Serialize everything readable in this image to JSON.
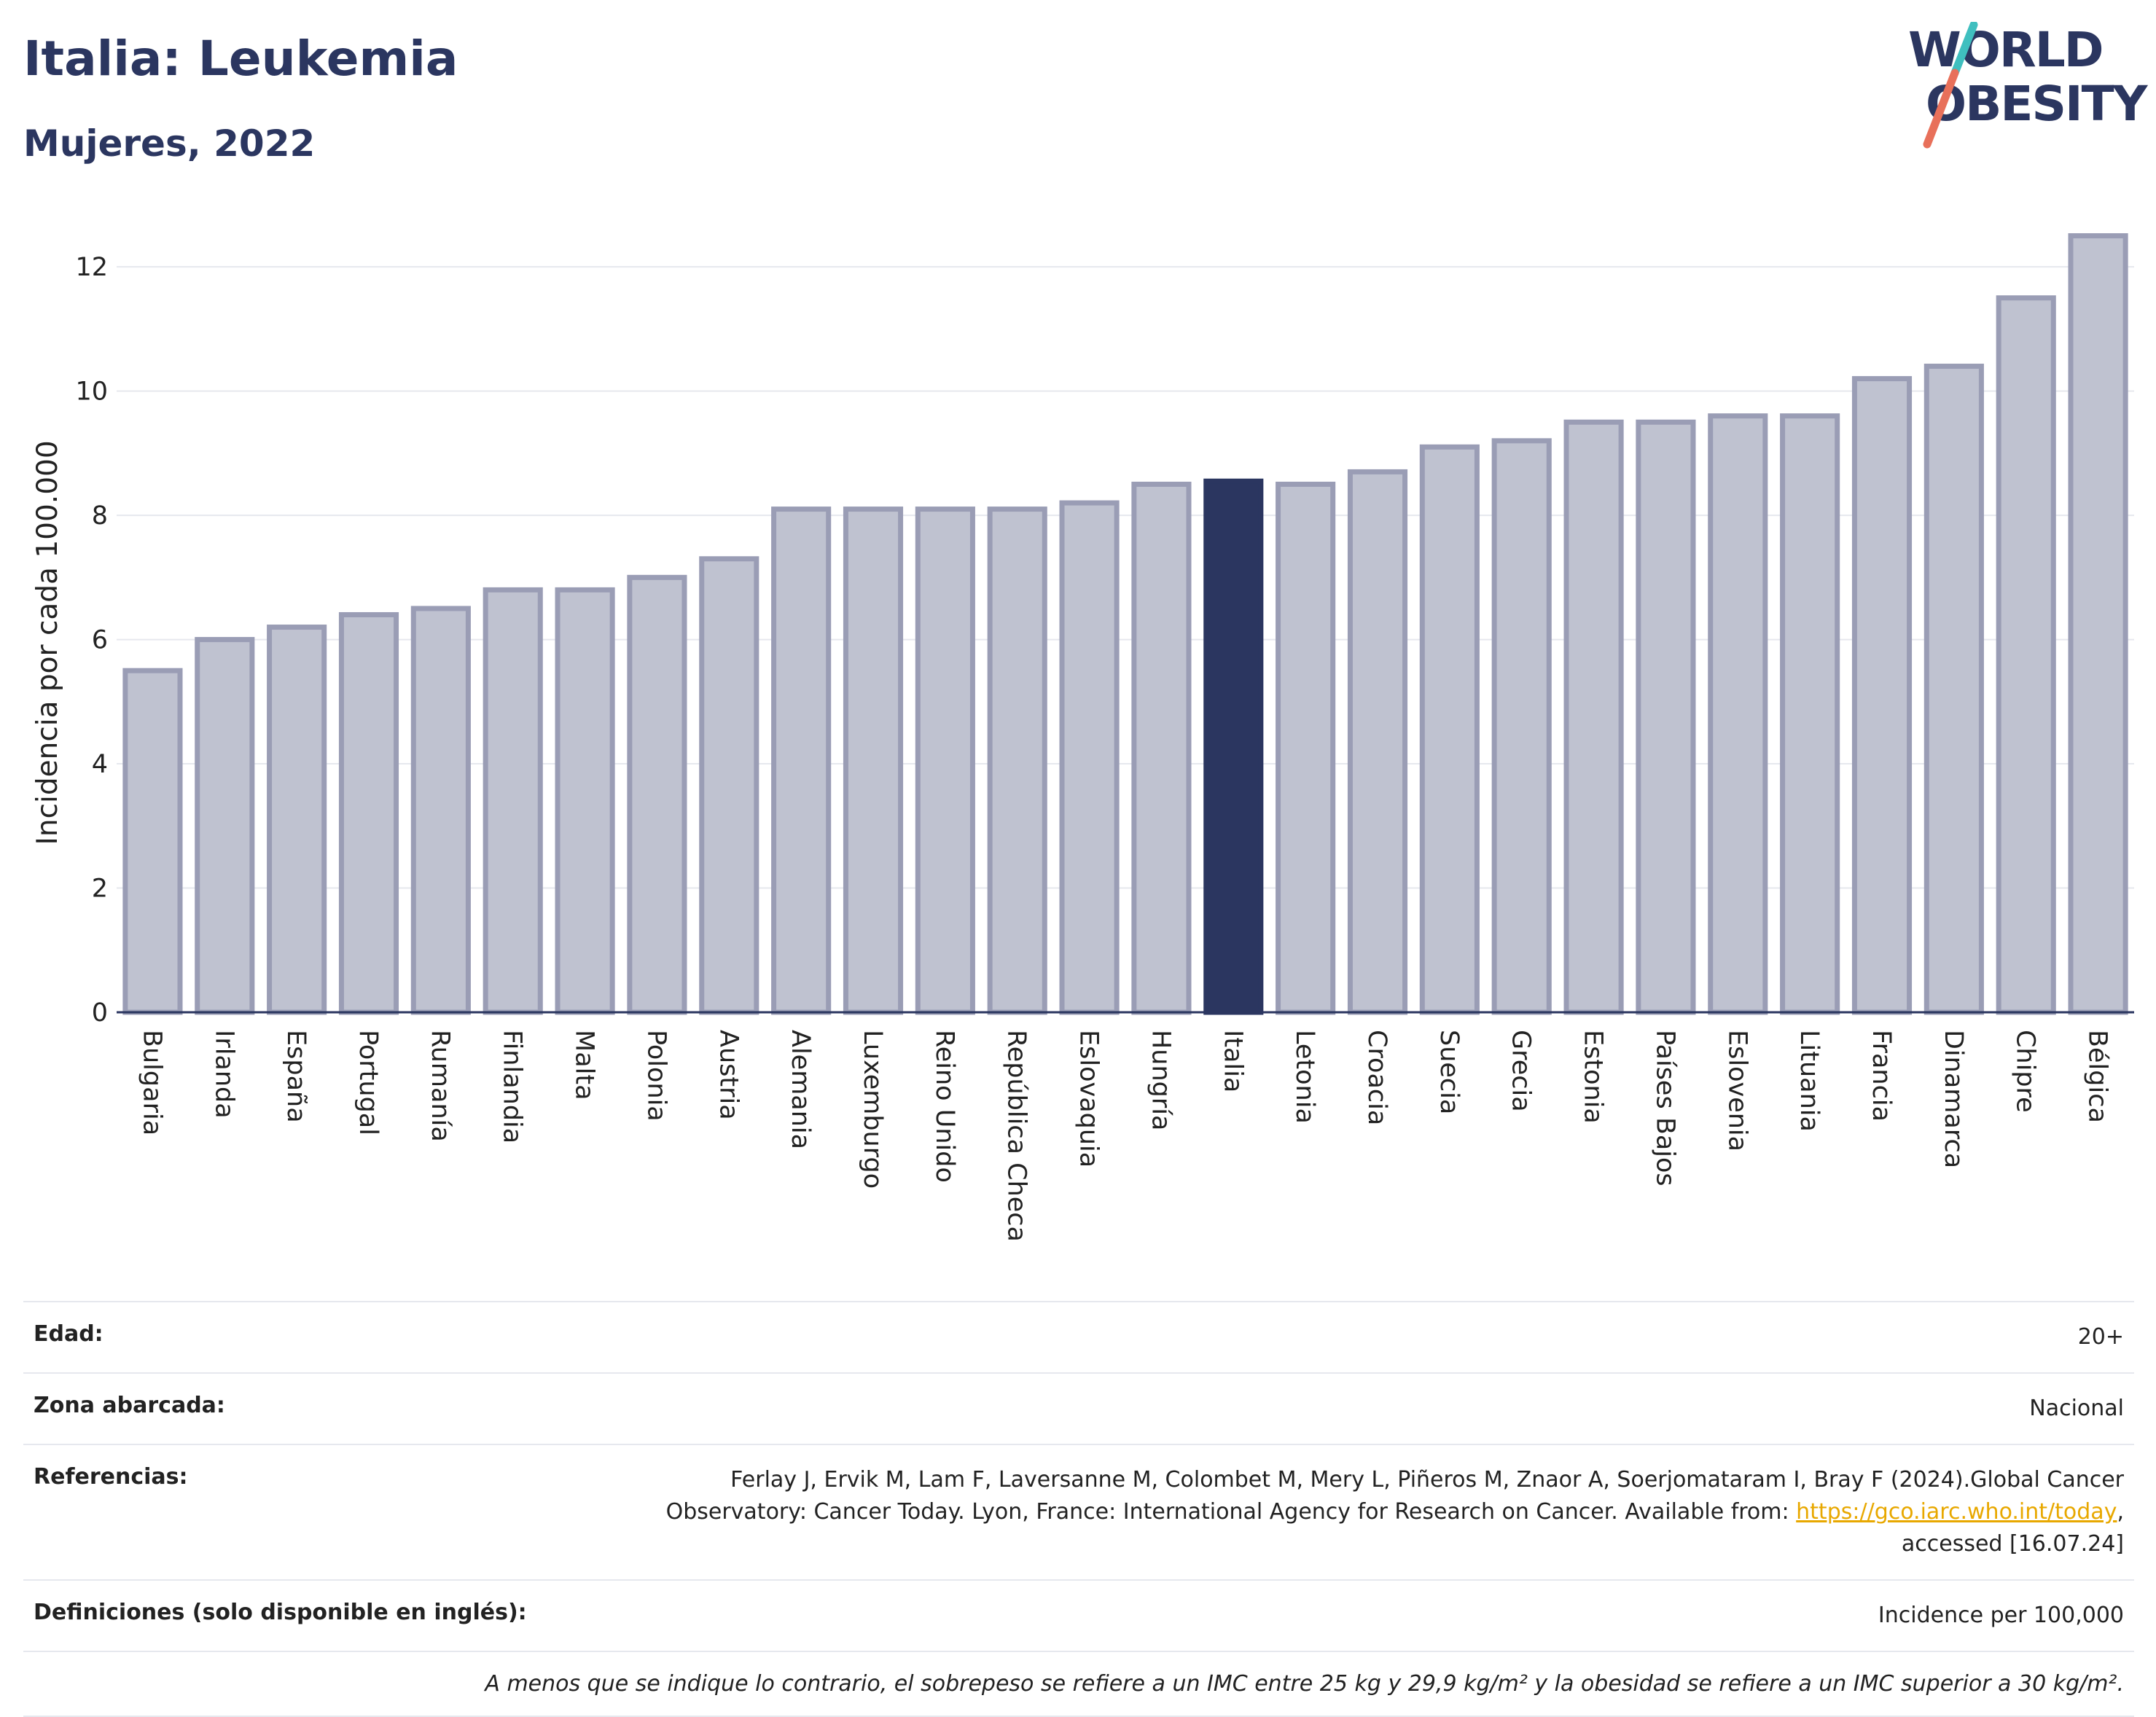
{
  "header": {
    "title": "Italia: Leukemia",
    "subtitle": "Mujeres, 2022",
    "logo_line1": "WORLD",
    "logo_line2": "OBESITY"
  },
  "colors": {
    "bar": "#bfc2d0",
    "bar_border": "#9a9db5",
    "highlight": "#2b3660",
    "grid": "#e6e8ee",
    "logo_teal": "#3fbfbf",
    "logo_coral": "#e8705a"
  },
  "chart_data": {
    "type": "bar",
    "ylabel": "Incidencia por cada 100.000",
    "ylim": [
      0,
      12.6
    ],
    "yticks": [
      0,
      2,
      4,
      6,
      8,
      10,
      12
    ],
    "grid": true,
    "highlight": "Italia",
    "categories": [
      "Bulgaria",
      "Irlanda",
      "España",
      "Portugal",
      "Rumanía",
      "Finlandia",
      "Malta",
      "Polonia",
      "Austria",
      "Alemania",
      "Luxemburgo",
      "Reino Unido",
      "República Checa",
      "Eslovaquia",
      "Hungría",
      "Italia",
      "Letonia",
      "Croacia",
      "Suecia",
      "Grecia",
      "Estonia",
      "Países Bajos",
      "Eslovenia",
      "Lituania",
      "Francia",
      "Dinamarca",
      "Chipre",
      "Bélgica"
    ],
    "values": [
      5.5,
      6.0,
      6.2,
      6.4,
      6.5,
      6.8,
      6.8,
      7.0,
      7.3,
      8.1,
      8.1,
      8.1,
      8.1,
      8.2,
      8.5,
      8.55,
      8.5,
      8.7,
      9.1,
      9.2,
      9.5,
      9.5,
      9.6,
      9.6,
      10.2,
      10.4,
      11.5,
      12.5
    ]
  },
  "info": {
    "edad_label": "Edad:",
    "edad_value": "20+",
    "zona_label": "Zona abarcada:",
    "zona_value": "Nacional",
    "ref_label": "Referencias:",
    "ref_text1": "Ferlay J, Ervik M, Lam F, Laversanne M, Colombet M, Mery L, Piñeros M, Znaor A, Soerjomataram I, Bray F (2024).Global Cancer Observatory: Cancer Today. Lyon, France: International Agency for Research on Cancer. Available from: ",
    "ref_link": "https://gco.iarc.who.int/today",
    "ref_text2": ", accessed [16.07.24]",
    "def_label": "Definiciones (solo disponible en inglés):",
    "def_value": "Incidence per 100,000",
    "footnote": "A menos que se indique lo contrario, el sobrepeso se refiere a un IMC entre 25 kg y 29,9 kg/m² y la obesidad se refiere a un IMC superior a 30 kg/m²."
  }
}
